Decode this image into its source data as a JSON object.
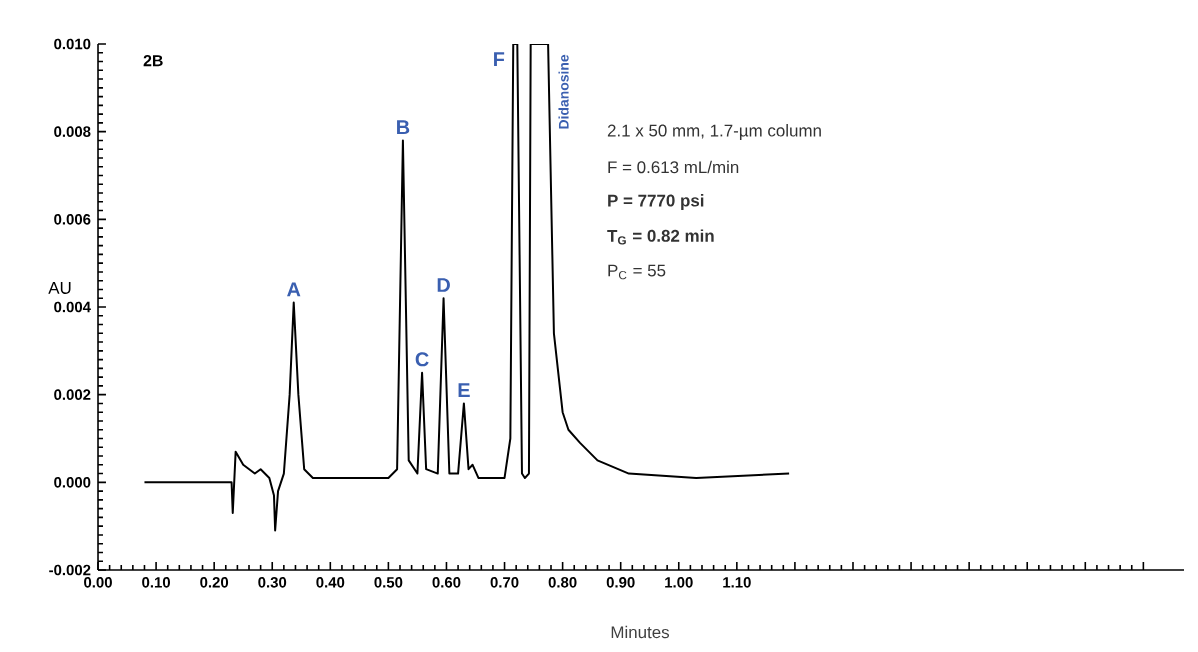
{
  "chart_data": {
    "type": "line",
    "title": "2B",
    "xlabel": "Minutes",
    "ylabel": "AU",
    "color": "#000000",
    "x": [
      0.08,
      0.15,
      0.23,
      0.232,
      0.237,
      0.25,
      0.27,
      0.28,
      0.295,
      0.303,
      0.305,
      0.31,
      0.32,
      0.33,
      0.337,
      0.345,
      0.355,
      0.37,
      0.5,
      0.515,
      0.525,
      0.535,
      0.55,
      0.558,
      0.565,
      0.585,
      0.595,
      0.605,
      0.62,
      0.63,
      0.638,
      0.645,
      0.655,
      0.7,
      0.71,
      0.715,
      0.722,
      0.73,
      0.735,
      0.742,
      0.745,
      0.775,
      0.785,
      0.8,
      0.81,
      0.83,
      0.86,
      0.914,
      1.03,
      1.19
    ],
    "values": [
      0,
      0,
      0,
      -0.0007,
      0.0007,
      0.0004,
      0.0002,
      0.0003,
      0.0001,
      -0.0003,
      -0.0011,
      -0.0002,
      0.0002,
      0.002,
      0.0041,
      0.002,
      0.0003,
      0.0001,
      0.0001,
      0.0003,
      0.0078,
      0.0005,
      0.0002,
      0.0025,
      0.0003,
      0.0002,
      0.0042,
      0.0002,
      0.0002,
      0.0018,
      0.0003,
      0.0004,
      0.0001,
      0.0001,
      0.001,
      0.01,
      0.01,
      0.0002,
      0.0001,
      0.0002,
      0.01,
      0.01,
      0.0034,
      0.0016,
      0.0012,
      0.0009,
      0.0005,
      0.0002,
      0.0001,
      0.0002
    ],
    "xlim": [
      0,
      1.87
    ],
    "ylim": [
      -0.002,
      0.01
    ],
    "xticks": [
      {
        "value": 0,
        "label": "0.00"
      },
      {
        "value": 0.1,
        "label": "0.10"
      },
      {
        "value": 0.2,
        "label": "0.20"
      },
      {
        "value": 0.3,
        "label": "0.30"
      },
      {
        "value": 0.4,
        "label": "0.40"
      },
      {
        "value": 0.5,
        "label": "0.50"
      },
      {
        "value": 0.6,
        "label": "0.60"
      },
      {
        "value": 0.7,
        "label": "0.70"
      },
      {
        "value": 0.8,
        "label": "0.80"
      },
      {
        "value": 0.9,
        "label": "0.90"
      },
      {
        "value": 1.0,
        "label": "1.00"
      },
      {
        "value": 1.1,
        "label": "1.10"
      },
      {
        "value": 1.2,
        "label": null
      },
      {
        "value": 1.3,
        "label": null
      },
      {
        "value": 1.4,
        "label": null
      },
      {
        "value": 1.5,
        "label": null
      },
      {
        "value": 1.6,
        "label": null
      },
      {
        "value": 1.7,
        "label": null
      },
      {
        "value": 1.8,
        "label": null
      }
    ],
    "yticks": [
      {
        "value": -0.002,
        "label": "-0.002"
      },
      {
        "value": 0,
        "label": "0.000"
      },
      {
        "value": 0.002,
        "label": "0.002"
      },
      {
        "value": 0.004,
        "label": "0.004"
      },
      {
        "value": 0.006,
        "label": "0.006"
      },
      {
        "value": 0.008,
        "label": "0.008"
      },
      {
        "value": 0.01,
        "label": "0.010"
      }
    ],
    "grid": false,
    "marker": "none",
    "line_style": "solid",
    "annotations": [
      {
        "text": "A",
        "x": 0.337,
        "y": 0.0041
      },
      {
        "text": "B",
        "x": 0.525,
        "y": 0.0078
      },
      {
        "text": "C",
        "x": 0.558,
        "y": 0.0025
      },
      {
        "text": "D",
        "x": 0.595,
        "y": 0.0042
      },
      {
        "text": "E",
        "x": 0.63,
        "y": 0.0018
      },
      {
        "text": "F",
        "x": 0.715,
        "y": 0.01
      },
      {
        "text": "Didanosine",
        "x": 0.775,
        "y": 0.01
      },
      "2.1 x 50 mm, 1.7-µm column",
      "F = 0.613 mL/min",
      "**P = 7770 psi**",
      "**T$_{G}$ = 0.82 min**",
      "P$_{C}$ = 55"
    ]
  }
}
